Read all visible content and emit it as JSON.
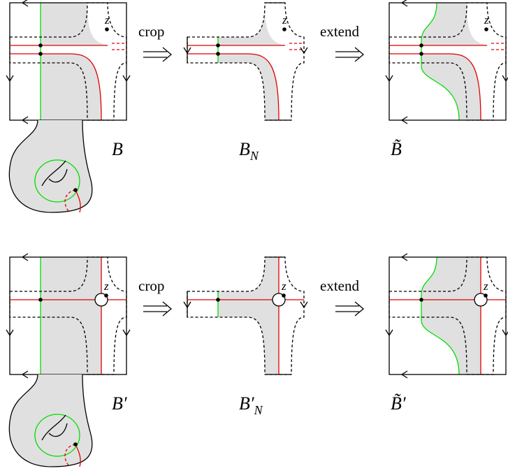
{
  "rows": [
    {
      "arrow_left": "crop",
      "arrow_right": "extend",
      "panels": [
        {
          "label": "B",
          "marker": "z"
        },
        {
          "label": "B",
          "subscript": "N",
          "marker": "z"
        },
        {
          "label": "B̃",
          "marker": "z"
        }
      ]
    },
    {
      "arrow_left": "crop",
      "arrow_right": "extend",
      "panels": [
        {
          "label": "B′",
          "marker": "z"
        },
        {
          "label": "B′",
          "subscript": "N",
          "marker": "z"
        },
        {
          "label": "B̃′",
          "marker": "z"
        }
      ]
    }
  ]
}
